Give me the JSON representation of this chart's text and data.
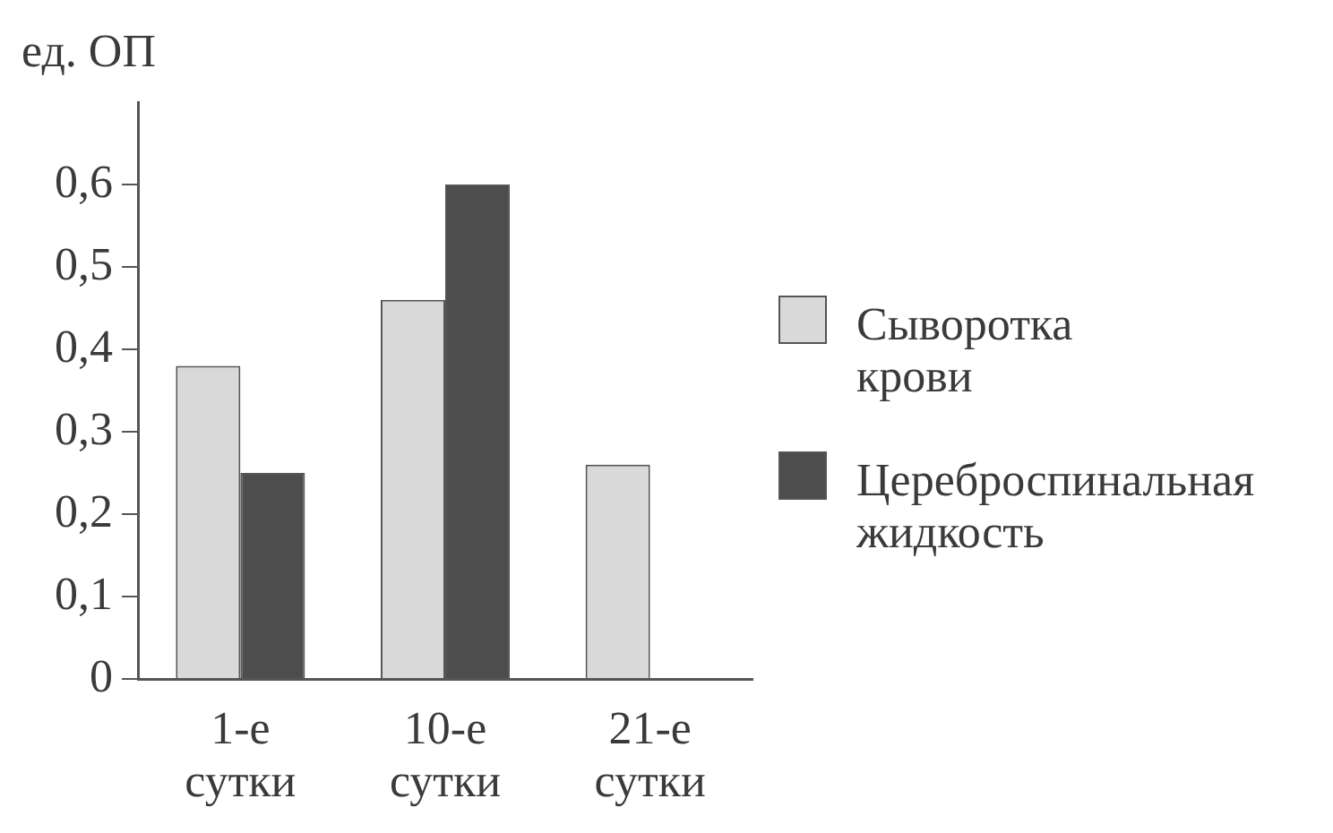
{
  "chart_data": {
    "type": "bar",
    "ylabel": "ед. ОП",
    "categories": [
      "1-е сутки",
      "10-е сутки",
      "21-е сутки"
    ],
    "series": [
      {
        "name": "Сыворотка крови",
        "color": "#d9d9d9",
        "values": [
          0.38,
          0.46,
          0.26
        ]
      },
      {
        "name": "Цереброспинальная жидкость",
        "color": "#4d4d4d",
        "values": [
          0.25,
          0.6,
          null
        ]
      }
    ],
    "ylim": [
      0,
      0.7
    ],
    "yticks": [
      0,
      {
        "value": 0.1,
        "label": "0,1"
      },
      {
        "value": 0.2,
        "label": "0,2"
      },
      {
        "value": 0.3,
        "label": "0,3"
      },
      {
        "value": 0.4,
        "label": "0,4"
      },
      {
        "value": 0.5,
        "label": "0,5"
      },
      {
        "value": 0.6,
        "label": "0,6"
      }
    ],
    "grid": false,
    "legend": "right"
  }
}
